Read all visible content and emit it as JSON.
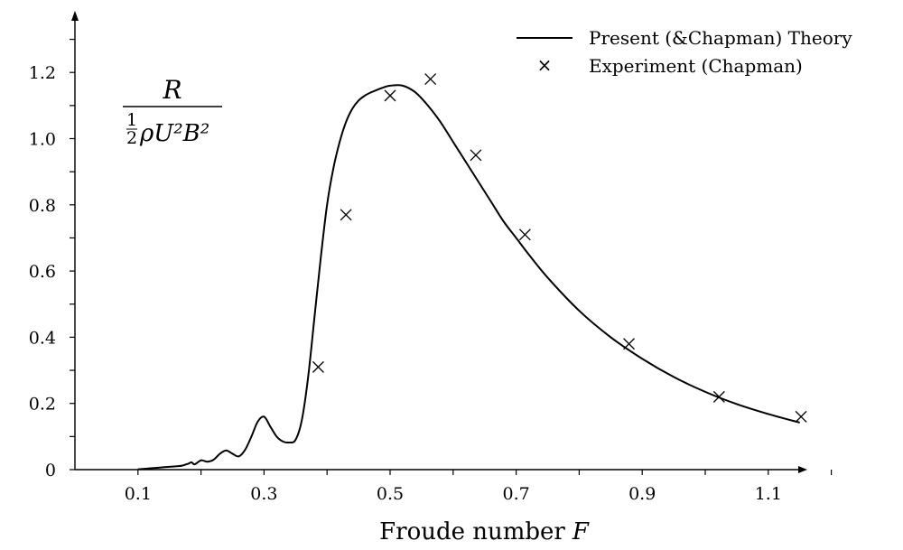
{
  "chart_data": {
    "type": "line",
    "title": "",
    "xlabel": "Froude number",
    "xlabel_symbol": "F",
    "ylabel": {
      "numerator": "R",
      "denominator_frac_top": "1",
      "denominator_frac_bottom": "2",
      "denominator_rest": "ρU²B²"
    },
    "xlim": [
      0.0,
      1.2
    ],
    "ylim": [
      0.0,
      1.38
    ],
    "x_ticks": [
      0.1,
      0.3,
      0.5,
      0.7,
      0.9,
      1.1
    ],
    "x_tick_labels": [
      "0.1",
      "0.3",
      "0.5",
      "0.7",
      "0.9",
      "1.1"
    ],
    "y_ticks": [
      0,
      0.2,
      0.4,
      0.6,
      0.8,
      1.0,
      1.2
    ],
    "y_tick_labels": [
      "0",
      "0.2",
      "0.4",
      "0.6",
      "0.8",
      "1.0",
      "1.2"
    ],
    "grid": false,
    "legend_position": "top-right",
    "series": [
      {
        "name": "Present (&Chapman) Theory",
        "kind": "line",
        "color": "#000000",
        "x": [
          0.1,
          0.12,
          0.14,
          0.16,
          0.17,
          0.18,
          0.185,
          0.19,
          0.2,
          0.21,
          0.22,
          0.23,
          0.24,
          0.25,
          0.26,
          0.27,
          0.28,
          0.29,
          0.3,
          0.31,
          0.32,
          0.33,
          0.34,
          0.35,
          0.36,
          0.37,
          0.38,
          0.39,
          0.4,
          0.41,
          0.42,
          0.43,
          0.44,
          0.45,
          0.46,
          0.47,
          0.48,
          0.49,
          0.5,
          0.52,
          0.54,
          0.56,
          0.58,
          0.6,
          0.62,
          0.64,
          0.66,
          0.68,
          0.7,
          0.72,
          0.75,
          0.8,
          0.85,
          0.9,
          0.95,
          1.0,
          1.05,
          1.1,
          1.15
        ],
        "y": [
          0.001,
          0.004,
          0.007,
          0.01,
          0.012,
          0.018,
          0.022,
          0.016,
          0.028,
          0.024,
          0.03,
          0.048,
          0.058,
          0.048,
          0.04,
          0.06,
          0.1,
          0.145,
          0.16,
          0.13,
          0.1,
          0.085,
          0.082,
          0.09,
          0.15,
          0.28,
          0.46,
          0.64,
          0.8,
          0.91,
          0.99,
          1.05,
          1.09,
          1.115,
          1.13,
          1.14,
          1.148,
          1.155,
          1.16,
          1.16,
          1.14,
          1.1,
          1.05,
          0.99,
          0.93,
          0.87,
          0.81,
          0.75,
          0.7,
          0.65,
          0.58,
          0.48,
          0.4,
          0.335,
          0.28,
          0.235,
          0.198,
          0.168,
          0.142
        ]
      },
      {
        "name": "Experiment (Chapman)",
        "kind": "scatter",
        "marker": "×",
        "color": "#000000",
        "x": [
          0.386,
          0.43,
          0.5,
          0.564,
          0.636,
          0.714,
          0.879,
          1.022,
          1.152
        ],
        "y": [
          0.31,
          0.77,
          1.13,
          1.18,
          0.95,
          0.71,
          0.38,
          0.22,
          0.16
        ]
      }
    ]
  }
}
